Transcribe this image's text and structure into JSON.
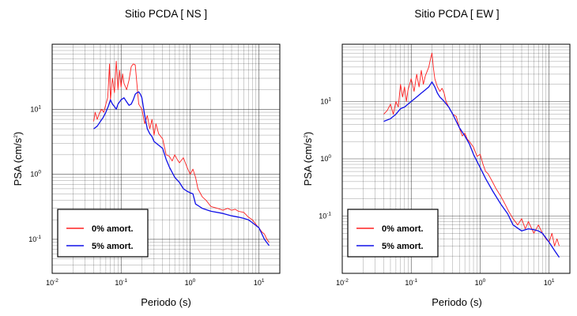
{
  "colors": {
    "undamped": "#ff2020",
    "damped": "#1010e8",
    "grid": "#000000"
  },
  "chart_data": [
    {
      "type": "line",
      "title": "Sitio PCDA [ NS ]",
      "xlabel": "Periodo (s)",
      "ylabel": "PSA (cm/s²)",
      "ylabel_base": "PSA (cm/s",
      "ylabel_sup": "2",
      "ylabel_end": ")",
      "xscale": "log",
      "yscale": "log",
      "xlim": [
        0.01,
        20
      ],
      "ylim": [
        0.03,
        100
      ],
      "grid": true,
      "legend_position": "lower-left",
      "x_ticks": [
        {
          "base": "10",
          "exp": "-2",
          "value": 0.01
        },
        {
          "base": "10",
          "exp": "-1",
          "value": 0.1
        },
        {
          "base": "10",
          "exp": "0",
          "value": 1
        },
        {
          "base": "10",
          "exp": "1",
          "value": 10
        }
      ],
      "y_ticks": [
        {
          "base": "10",
          "exp": "-1",
          "value": 0.1
        },
        {
          "base": "10",
          "exp": "0",
          "value": 1
        },
        {
          "base": "10",
          "exp": "1",
          "value": 10
        }
      ],
      "series": [
        {
          "name": "0% amort.",
          "color": "#ff2020",
          "x": [
            0.04,
            0.042,
            0.045,
            0.048,
            0.052,
            0.056,
            0.06,
            0.064,
            0.068,
            0.07,
            0.075,
            0.08,
            0.085,
            0.09,
            0.095,
            0.1,
            0.105,
            0.11,
            0.12,
            0.13,
            0.14,
            0.15,
            0.16,
            0.18,
            0.2,
            0.22,
            0.24,
            0.26,
            0.28,
            0.3,
            0.32,
            0.35,
            0.4,
            0.45,
            0.5,
            0.55,
            0.6,
            0.65,
            0.7,
            0.8,
            0.9,
            1.0,
            1.1,
            1.2,
            1.3,
            1.5,
            1.7,
            2.0,
            2.5,
            3.0,
            3.5,
            4.0,
            4.5,
            5.0,
            6.0,
            7.0,
            8.0,
            9.0,
            10,
            11,
            12,
            13,
            14
          ],
          "y": [
            6.5,
            9,
            7,
            8.5,
            10,
            9,
            12,
            15,
            50,
            14,
            30,
            18,
            55,
            20,
            40,
            22,
            35,
            25,
            20,
            28,
            45,
            50,
            48,
            12,
            10,
            6,
            8,
            5,
            7,
            4,
            6,
            4.2,
            3.5,
            2,
            1.9,
            1.6,
            2.0,
            1.7,
            1.5,
            1.8,
            1.3,
            1.0,
            1.2,
            0.9,
            0.6,
            0.45,
            0.4,
            0.32,
            0.3,
            0.28,
            0.3,
            0.28,
            0.29,
            0.27,
            0.26,
            0.22,
            0.2,
            0.17,
            0.15,
            0.13,
            0.12,
            0.1,
            0.09
          ]
        },
        {
          "name": "5% amort.",
          "color": "#1010e8",
          "x": [
            0.04,
            0.045,
            0.05,
            0.055,
            0.06,
            0.065,
            0.07,
            0.075,
            0.08,
            0.085,
            0.09,
            0.1,
            0.11,
            0.12,
            0.13,
            0.14,
            0.15,
            0.16,
            0.17,
            0.18,
            0.19,
            0.2,
            0.22,
            0.24,
            0.26,
            0.28,
            0.3,
            0.35,
            0.4,
            0.45,
            0.5,
            0.6,
            0.7,
            0.8,
            0.9,
            1.0,
            1.1,
            1.2,
            1.5,
            2.0,
            3.0,
            4.0,
            5.0,
            6.0,
            7.0,
            8.0,
            10,
            12,
            14
          ],
          "y": [
            5,
            5.5,
            6.5,
            7.5,
            9,
            11,
            14,
            12,
            11,
            10,
            12,
            14,
            15,
            13,
            11.5,
            12,
            14,
            17,
            18,
            18.5,
            17,
            15,
            8,
            5,
            4.2,
            3.8,
            3.2,
            2.8,
            2.5,
            1.7,
            1.3,
            0.9,
            0.75,
            0.6,
            0.55,
            0.52,
            0.5,
            0.35,
            0.3,
            0.27,
            0.25,
            0.23,
            0.22,
            0.21,
            0.2,
            0.18,
            0.15,
            0.1,
            0.08
          ]
        }
      ]
    },
    {
      "type": "line",
      "title": "Sitio PCDA [ EW ]",
      "xlabel": "Periodo (s)",
      "ylabel": "PSA (cm/s²)",
      "ylabel_base": "PSA (cm/s",
      "ylabel_sup": "2",
      "ylabel_end": ")",
      "xscale": "log",
      "yscale": "log",
      "xlim": [
        0.01,
        20
      ],
      "ylim": [
        0.01,
        100
      ],
      "grid": true,
      "legend_position": "lower-left",
      "x_ticks": [
        {
          "base": "10",
          "exp": "-2",
          "value": 0.01
        },
        {
          "base": "10",
          "exp": "-1",
          "value": 0.1
        },
        {
          "base": "10",
          "exp": "0",
          "value": 1
        },
        {
          "base": "10",
          "exp": "1",
          "value": 10
        }
      ],
      "y_ticks": [
        {
          "base": "10",
          "exp": "-1",
          "value": 0.1
        },
        {
          "base": "10",
          "exp": "0",
          "value": 1
        },
        {
          "base": "10",
          "exp": "1",
          "value": 10
        }
      ],
      "series": [
        {
          "name": "0% amort.",
          "color": "#ff2020",
          "x": [
            0.04,
            0.045,
            0.05,
            0.055,
            0.06,
            0.065,
            0.07,
            0.075,
            0.08,
            0.085,
            0.09,
            0.1,
            0.11,
            0.12,
            0.13,
            0.14,
            0.15,
            0.16,
            0.18,
            0.19,
            0.2,
            0.21,
            0.22,
            0.24,
            0.26,
            0.28,
            0.3,
            0.32,
            0.35,
            0.4,
            0.45,
            0.5,
            0.55,
            0.6,
            0.65,
            0.7,
            0.8,
            0.9,
            1.0,
            1.1,
            1.2,
            1.3,
            1.5,
            1.7,
            2.0,
            2.3,
            2.6,
            3.0,
            3.5,
            4.0,
            4.5,
            5.0,
            6.0,
            7.0,
            8.0,
            9.0,
            10,
            11,
            12,
            13,
            14
          ],
          "y": [
            6,
            7,
            9,
            6,
            10,
            8,
            20,
            12,
            18,
            10,
            16,
            25,
            15,
            30,
            18,
            35,
            20,
            28,
            40,
            55,
            70,
            38,
            25,
            18,
            15,
            17,
            14,
            10,
            8,
            6,
            5.5,
            3.5,
            2.5,
            2.8,
            2.2,
            2.0,
            1.6,
            1.1,
            1.2,
            0.8,
            0.6,
            0.55,
            0.4,
            0.3,
            0.22,
            0.16,
            0.12,
            0.09,
            0.07,
            0.09,
            0.06,
            0.08,
            0.05,
            0.07,
            0.05,
            0.04,
            0.035,
            0.05,
            0.03,
            0.04,
            0.03
          ]
        },
        {
          "name": "5% amort.",
          "color": "#1010e8",
          "x": [
            0.04,
            0.05,
            0.06,
            0.07,
            0.08,
            0.09,
            0.1,
            0.11,
            0.12,
            0.13,
            0.14,
            0.15,
            0.16,
            0.17,
            0.18,
            0.19,
            0.2,
            0.22,
            0.24,
            0.26,
            0.28,
            0.3,
            0.35,
            0.4,
            0.45,
            0.5,
            0.6,
            0.7,
            0.8,
            0.9,
            1.0,
            1.2,
            1.5,
            2.0,
            2.5,
            3.0,
            4.0,
            5.0,
            6.0,
            7.0,
            8.0,
            10,
            12,
            14
          ],
          "y": [
            4.5,
            5,
            6,
            7.5,
            8,
            9,
            10,
            11,
            12,
            13,
            14,
            15,
            16,
            17,
            18,
            20,
            22,
            18,
            14,
            12,
            11,
            10,
            8,
            6,
            4.5,
            3.5,
            2.5,
            1.8,
            1.2,
            0.9,
            0.7,
            0.45,
            0.28,
            0.16,
            0.11,
            0.07,
            0.055,
            0.06,
            0.058,
            0.055,
            0.05,
            0.035,
            0.025,
            0.019
          ]
        }
      ]
    }
  ]
}
